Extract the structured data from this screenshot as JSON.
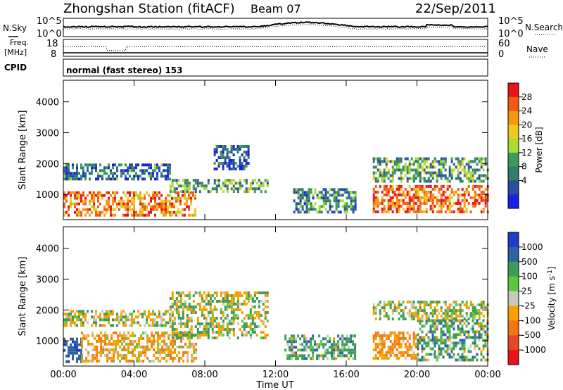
{
  "header": {
    "station": "Zhongshan Station (fitACF)",
    "beam": "Beam 07",
    "date": "22/Sep/2011"
  },
  "noise_panel": {
    "left_label": "N.Sky",
    "right_label": "N.Search",
    "left_ticks": [
      "10^5",
      "10^0"
    ],
    "right_ticks": [
      "10^5",
      "10^0"
    ]
  },
  "freq_panel": {
    "left_label_1": "Freq.",
    "left_label_2": "[MHz]",
    "right_label": "Nave",
    "left_ticks": [
      "18",
      "8"
    ],
    "right_ticks": [
      "60",
      "0"
    ]
  },
  "cpid_panel": {
    "label": "CPID",
    "text": "normal (fast stereo) 153"
  },
  "power_colorbar": {
    "label": "Power [dB]",
    "ticks": [
      "28",
      "24",
      "20",
      "16",
      "12",
      "8",
      "4"
    ],
    "colors": [
      "#e8141c",
      "#f05a14",
      "#f59614",
      "#f0c81e",
      "#a8dc32",
      "#3c9b5a",
      "#327d6e",
      "#2850a0",
      "#1e1ee6"
    ]
  },
  "velocity_colorbar": {
    "label_main": "Velocity [m s",
    "label_sup": "-1",
    "label_end": "]",
    "ticks": [
      "1000",
      "500",
      "100",
      "25",
      "-25",
      "-100",
      "-500",
      "-1000"
    ],
    "colors": [
      "#1e3cc8",
      "#2d64a0",
      "#3c9b5a",
      "#5ac83c",
      "#c8c8be",
      "#f5a000",
      "#f07814",
      "#e84628",
      "#e8141c"
    ]
  },
  "axes": {
    "ylabel": "Slant Range [km]",
    "xlabel": "Time UT",
    "y_ticks": [
      "1000",
      "2000",
      "3000",
      "4000"
    ],
    "x_ticks": [
      "00:00",
      "04:00",
      "08:00",
      "12:00",
      "16:00",
      "20:00",
      "00:00"
    ]
  },
  "chart_data": [
    {
      "type": "heatmap",
      "title": "Power",
      "ylabel": "Slant Range [km]",
      "xlabel": "Time UT",
      "xlim_hours": [
        0,
        24
      ],
      "ylim": [
        180,
        4700
      ],
      "colorbar_label": "Power [dB]",
      "colorbar_ticks": [
        4,
        8,
        12,
        16,
        20,
        24,
        28
      ],
      "echo_regions": [
        {
          "t_start": 0.0,
          "t_end": 7.5,
          "range_min": 300,
          "range_max": 1100,
          "power_db": 24
        },
        {
          "t_start": 0.0,
          "t_end": 6.0,
          "range_min": 1500,
          "range_max": 2000,
          "power_db": 8
        },
        {
          "t_start": 6.0,
          "t_end": 11.5,
          "range_min": 1100,
          "range_max": 1500,
          "power_db": 12
        },
        {
          "t_start": 8.5,
          "t_end": 10.5,
          "range_min": 1800,
          "range_max": 2600,
          "power_db": 6
        },
        {
          "t_start": 13.0,
          "t_end": 16.5,
          "range_min": 400,
          "range_max": 1200,
          "power_db": 10
        },
        {
          "t_start": 17.5,
          "t_end": 24.0,
          "range_min": 400,
          "range_max": 1300,
          "power_db": 26
        },
        {
          "t_start": 17.5,
          "t_end": 24.0,
          "range_min": 1400,
          "range_max": 2200,
          "power_db": 12
        }
      ]
    },
    {
      "type": "heatmap",
      "title": "Velocity",
      "ylabel": "Slant Range [km]",
      "xlabel": "Time UT",
      "xlim_hours": [
        0,
        24
      ],
      "ylim": [
        180,
        4700
      ],
      "colorbar_label": "Velocity [m s-1]",
      "colorbar_ticks": [
        1000,
        500,
        100,
        25,
        -25,
        -100,
        -500,
        -1000
      ],
      "echo_regions": [
        {
          "t_start": 0.0,
          "t_end": 1.0,
          "range_min": 300,
          "range_max": 1100,
          "velocity": 600
        },
        {
          "t_start": 1.0,
          "t_end": 7.5,
          "range_min": 300,
          "range_max": 1300,
          "velocity": -200
        },
        {
          "t_start": 0.0,
          "t_end": 6.0,
          "range_min": 1500,
          "range_max": 2000,
          "velocity": 0
        },
        {
          "t_start": 6.0,
          "t_end": 11.5,
          "range_min": 1100,
          "range_max": 2600,
          "velocity": 0
        },
        {
          "t_start": 12.5,
          "t_end": 16.5,
          "range_min": 400,
          "range_max": 1200,
          "velocity": 150
        },
        {
          "t_start": 17.5,
          "t_end": 20.0,
          "range_min": 400,
          "range_max": 1300,
          "velocity": -300
        },
        {
          "t_start": 20.0,
          "t_end": 24.0,
          "range_min": 400,
          "range_max": 1700,
          "velocity": 150
        },
        {
          "t_start": 17.5,
          "t_end": 24.0,
          "range_min": 1700,
          "range_max": 2300,
          "velocity": 0
        }
      ]
    }
  ]
}
